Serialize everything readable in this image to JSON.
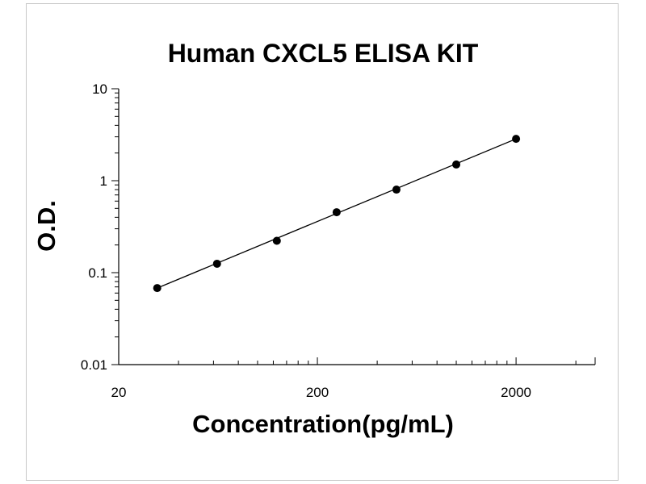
{
  "chart_data": {
    "type": "scatter",
    "title": "Human CXCL5 ELISA KIT",
    "xlabel": "Concentration(pg/mL)",
    "ylabel": "O.D.",
    "xscale": "log",
    "yscale": "log",
    "xlim": [
      20,
      5000
    ],
    "ylim": [
      0.01,
      10
    ],
    "xticks": [
      20,
      200,
      2000
    ],
    "xtick_labels": [
      "20",
      "200",
      "2000"
    ],
    "yticks": [
      0.01,
      0.1,
      1,
      10
    ],
    "ytick_labels": [
      "0.01",
      "0.1",
      "1",
      "10"
    ],
    "grid": false,
    "legend": "none",
    "trendline": true,
    "point_color": "#000000",
    "line_color": "#000000",
    "series": [
      {
        "x": [
          31.25,
          62.5,
          125,
          250,
          500,
          1000,
          2000
        ],
        "y": [
          0.068,
          0.125,
          0.222,
          0.454,
          0.8,
          1.5,
          2.85
        ]
      }
    ]
  }
}
